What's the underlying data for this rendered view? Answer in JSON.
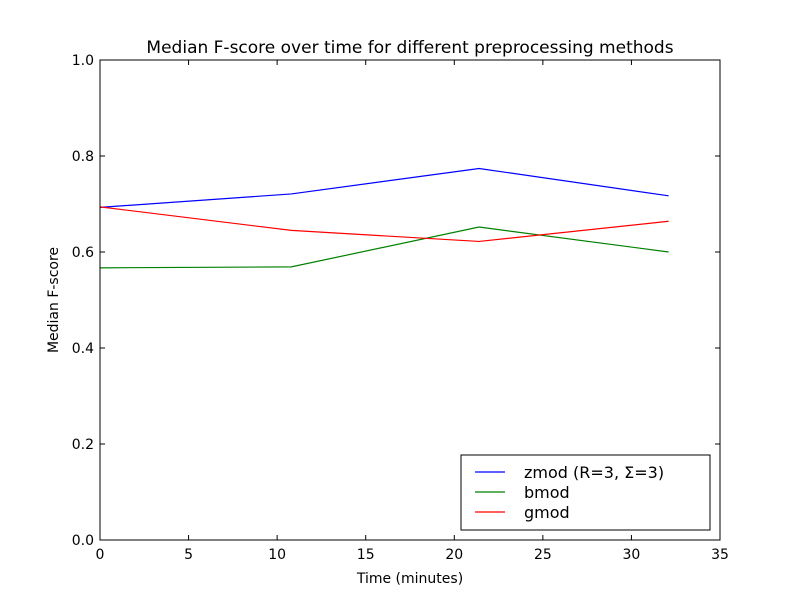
{
  "chart_data": {
    "type": "line",
    "title": "Median F-score over time for different preprocessing methods",
    "xlabel": "Time (minutes)",
    "ylabel": "Median F-score",
    "xlim": [
      0,
      35
    ],
    "ylim": [
      0.0,
      1.0
    ],
    "xticks": [
      "0",
      "5",
      "10",
      "15",
      "20",
      "25",
      "30",
      "35"
    ],
    "yticks": [
      "0.0",
      "0.2",
      "0.4",
      "0.6",
      "0.8",
      "1.0"
    ],
    "grid": false,
    "legend_position": "lower-right",
    "x": [
      0,
      10.8,
      21.4,
      32.1
    ],
    "series": [
      {
        "name": "zmod (R=3, Σ=3)",
        "color": "#0000ff",
        "values": [
          0.693,
          0.721,
          0.774,
          0.717
        ]
      },
      {
        "name": "bmod",
        "color": "#008000",
        "values": [
          0.567,
          0.569,
          0.652,
          0.6
        ]
      },
      {
        "name": "gmod",
        "color": "#ff0000",
        "values": [
          0.694,
          0.645,
          0.622,
          0.664
        ]
      }
    ]
  }
}
